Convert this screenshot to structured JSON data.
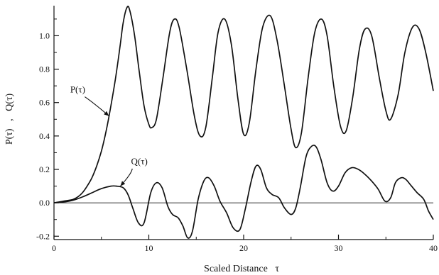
{
  "chart_data": {
    "type": "line",
    "title": "",
    "xlabel": "Scaled Distance   τ",
    "ylabel": "P(τ)   ,   Q(τ)",
    "xlim": [
      0,
      40
    ],
    "ylim": [
      -0.22,
      1.18
    ],
    "x_ticks": [
      "0",
      "10",
      "20",
      "30",
      "40"
    ],
    "y_ticks": [
      "-0.2",
      "0.0",
      "0.2",
      "0.4",
      "0.6",
      "0.8",
      "1.0"
    ],
    "grid": false,
    "zero_line": true,
    "series": [
      {
        "name": "P(τ)",
        "x": [
          0,
          1,
          2,
          2.5,
          3,
          3.5,
          4,
          4.5,
          5,
          5.5,
          6,
          6.5,
          7,
          7.3,
          7.7,
          8,
          8.5,
          9,
          9.5,
          10,
          10.3,
          10.8,
          11.5,
          12.2,
          12.7,
          13.2,
          14,
          14.8,
          15.4,
          16,
          16.7,
          17.3,
          18,
          18.7,
          19.4,
          20,
          20.6,
          21.3,
          22,
          22.8,
          23.5,
          24.3,
          25,
          25.5,
          26.1,
          26.8,
          27.5,
          28.2,
          28.8,
          29.5,
          30.2,
          30.8,
          31.5,
          32.2,
          32.8,
          33.5,
          34.3,
          35,
          35.5,
          36.3,
          37,
          37.8,
          38.5,
          39.2,
          40
        ],
        "y": [
          0.0,
          0.01,
          0.02,
          0.035,
          0.06,
          0.1,
          0.15,
          0.22,
          0.31,
          0.43,
          0.58,
          0.75,
          0.95,
          1.08,
          1.17,
          1.15,
          1.0,
          0.78,
          0.58,
          0.47,
          0.45,
          0.5,
          0.75,
          1.02,
          1.1,
          1.05,
          0.8,
          0.52,
          0.4,
          0.45,
          0.75,
          1.02,
          1.1,
          0.95,
          0.62,
          0.41,
          0.48,
          0.8,
          1.05,
          1.12,
          0.98,
          0.7,
          0.44,
          0.33,
          0.42,
          0.75,
          1.02,
          1.1,
          1.0,
          0.7,
          0.46,
          0.43,
          0.63,
          0.92,
          1.04,
          1.0,
          0.75,
          0.55,
          0.5,
          0.65,
          0.9,
          1.05,
          1.04,
          0.9,
          0.67
        ]
      },
      {
        "name": "Q(τ)",
        "x": [
          0,
          1,
          2,
          3,
          4,
          5,
          6,
          6.6,
          7.3,
          7.8,
          8.3,
          8.9,
          9.5,
          10.2,
          10.8,
          11.4,
          12,
          12.5,
          13.1,
          13.6,
          14.1,
          14.6,
          15.2,
          15.8,
          16.3,
          16.9,
          17.5,
          18.2,
          18.9,
          19.6,
          20.2,
          20.8,
          21.3,
          21.8,
          22.4,
          23,
          23.7,
          24.3,
          25,
          25.5,
          26,
          26.6,
          27.2,
          27.7,
          28.2,
          28.8,
          29.4,
          30,
          30.7,
          31.4,
          32.1,
          32.8,
          33.5,
          34.2,
          34.9,
          35.5,
          36,
          36.6,
          37.1,
          37.7,
          38.3,
          39,
          39.5,
          40
        ],
        "y": [
          0.0,
          0.005,
          0.015,
          0.035,
          0.06,
          0.085,
          0.1,
          0.1,
          0.09,
          0.05,
          -0.03,
          -0.12,
          -0.12,
          0.06,
          0.12,
          0.09,
          -0.02,
          -0.07,
          -0.09,
          -0.14,
          -0.21,
          -0.17,
          0.02,
          0.13,
          0.15,
          0.1,
          0.01,
          -0.06,
          -0.15,
          -0.16,
          -0.03,
          0.13,
          0.22,
          0.2,
          0.09,
          0.05,
          0.03,
          -0.03,
          -0.07,
          -0.03,
          0.1,
          0.28,
          0.34,
          0.33,
          0.25,
          0.12,
          0.07,
          0.1,
          0.18,
          0.21,
          0.2,
          0.17,
          0.13,
          0.08,
          0.01,
          0.03,
          0.12,
          0.15,
          0.14,
          0.1,
          0.06,
          0.02,
          -0.05,
          -0.1
        ]
      }
    ],
    "annotations": [
      {
        "text": "P(τ)",
        "x": 2.5,
        "y": 0.66,
        "arrow_to": [
          5.8,
          0.52
        ]
      },
      {
        "text": "Q(τ)",
        "x": 9.0,
        "y": 0.23,
        "arrow_to": [
          7.0,
          0.1
        ]
      }
    ]
  }
}
